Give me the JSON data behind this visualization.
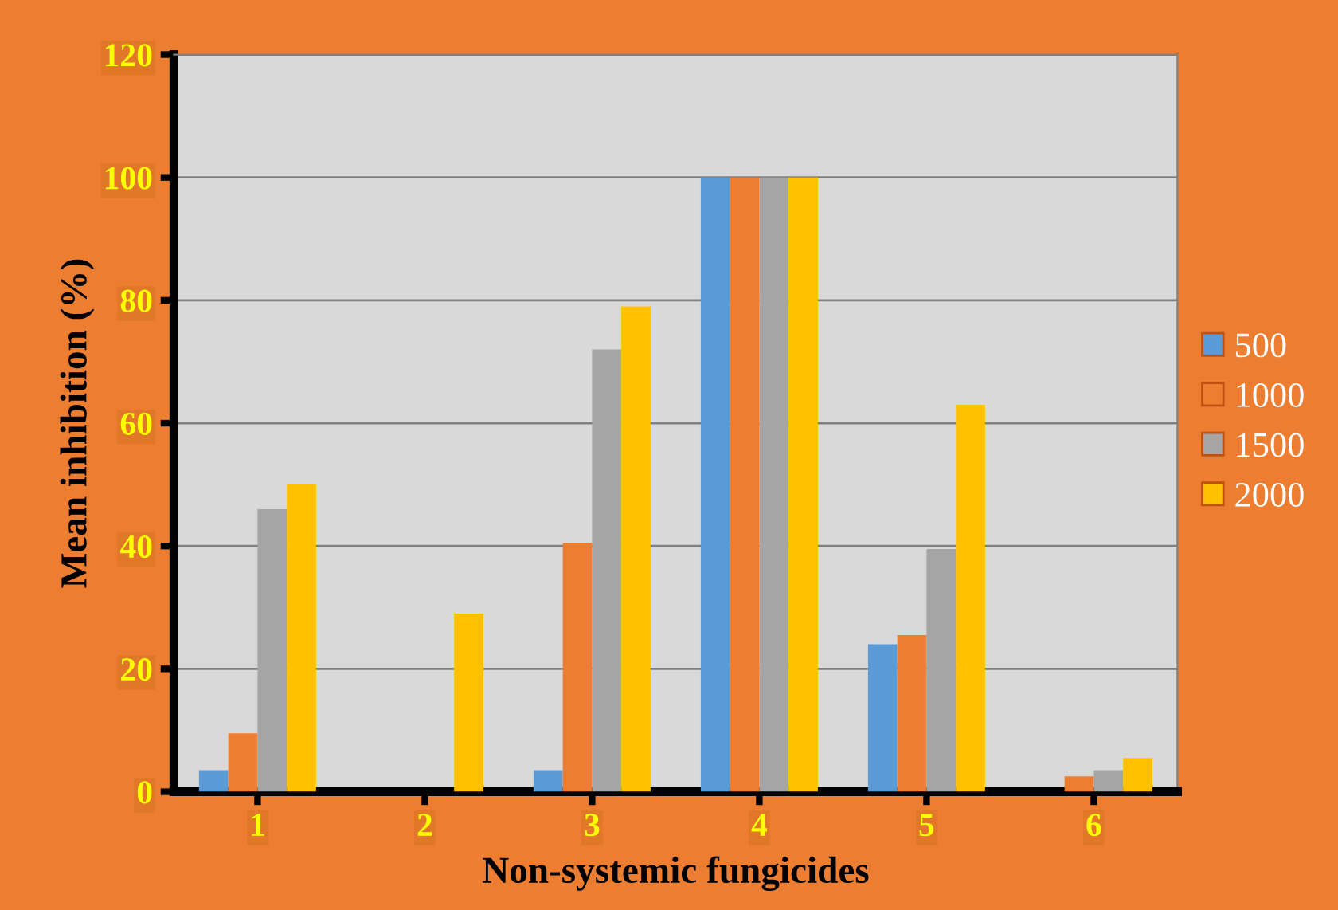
{
  "chart_data": {
    "type": "bar",
    "xlabel": "Non-systemic fungicides",
    "ylabel": "Mean inhibition (%)",
    "categories": [
      "1",
      "2",
      "3",
      "4",
      "5",
      "6"
    ],
    "series": [
      {
        "name": "500",
        "color": "#5b9bd5",
        "values": [
          3.5,
          0,
          3.5,
          100,
          24,
          0
        ]
      },
      {
        "name": "1000",
        "color": "#ed7d31",
        "values": [
          9.5,
          0,
          40.5,
          100,
          25.5,
          2.5
        ]
      },
      {
        "name": "1500",
        "color": "#a5a5a5",
        "values": [
          46,
          0,
          72,
          100,
          39.5,
          3.5
        ]
      },
      {
        "name": "2000",
        "color": "#ffc000",
        "values": [
          50,
          29,
          79,
          100,
          63,
          5.5
        ]
      }
    ],
    "ylim": [
      0,
      120
    ],
    "yticks": [
      0,
      20,
      40,
      60,
      80,
      100,
      120
    ],
    "grid": "y",
    "legend": "right"
  }
}
